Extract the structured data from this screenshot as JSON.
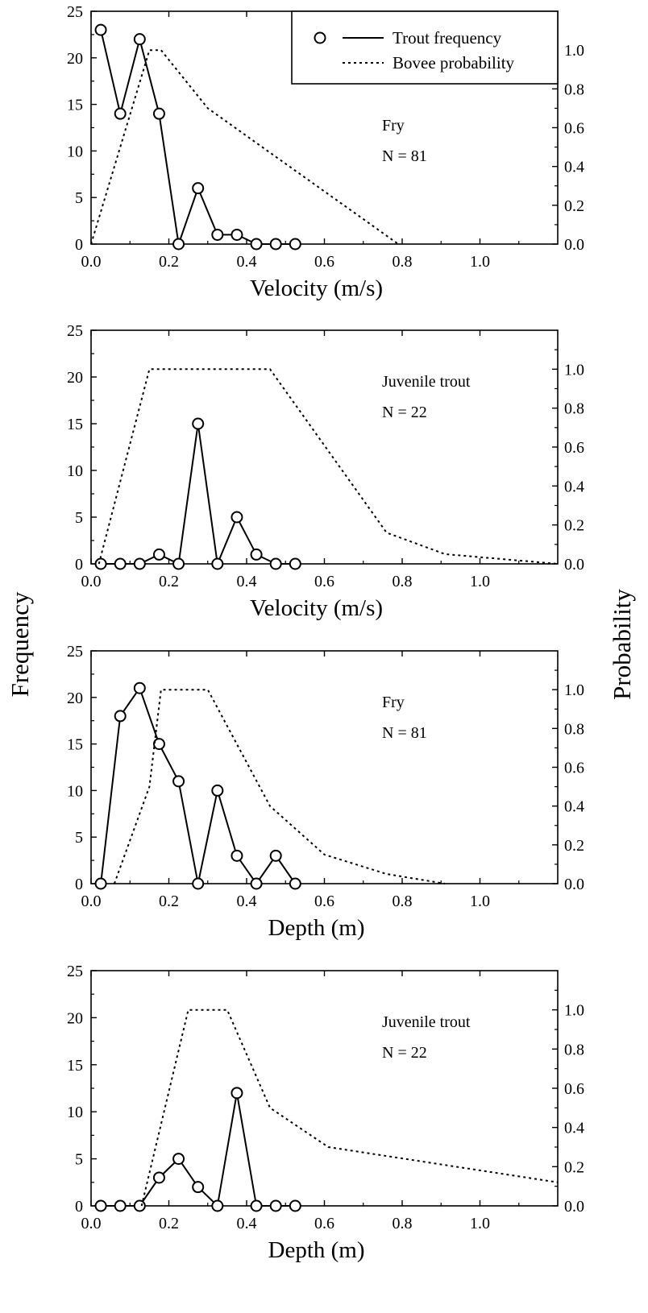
{
  "figure": {
    "left_axis_title": "Frequency",
    "right_axis_title": "Probability"
  },
  "legend": {
    "items": [
      {
        "label": "Trout frequency",
        "style": "solid-circle"
      },
      {
        "label": "Bovee probability",
        "style": "dotted"
      }
    ]
  },
  "colors": {
    "line": "#000000",
    "background": "#ffffff"
  },
  "chart_data": [
    {
      "type": "line",
      "title": "",
      "xlabel": "Velocity (m/s)",
      "ylabel": "Frequency",
      "y2label": "Probability",
      "xlim": [
        0,
        1.2
      ],
      "ylim": [
        0,
        25
      ],
      "y2lim": [
        0,
        1.2
      ],
      "xticks": [
        "0.0",
        "0.2",
        "0.4",
        "0.6",
        "0.8",
        "1.0"
      ],
      "yticks": [
        "0",
        "5",
        "10",
        "15",
        "20",
        "25"
      ],
      "y2ticks": [
        "0.0",
        "0.2",
        "0.4",
        "0.6",
        "0.8",
        "1.0"
      ],
      "annotations": [
        "Fry",
        "N = 81"
      ],
      "legend_position": "top-right",
      "series": [
        {
          "name": "Trout frequency",
          "axis": "left",
          "x": [
            0.025,
            0.075,
            0.125,
            0.175,
            0.225,
            0.275,
            0.325,
            0.375,
            0.425,
            0.475,
            0.525
          ],
          "values": [
            23,
            14,
            22,
            14,
            0,
            6,
            1,
            1,
            0,
            0,
            0
          ]
        },
        {
          "name": "Bovee probability",
          "axis": "right",
          "x": [
            0,
            0.15,
            0.18,
            0.3,
            0.79
          ],
          "values": [
            0,
            1.0,
            1.0,
            0.7,
            0
          ]
        }
      ]
    },
    {
      "type": "line",
      "title": "",
      "xlabel": "Velocity (m/s)",
      "ylabel": "Frequency",
      "y2label": "Probability",
      "xlim": [
        0,
        1.2
      ],
      "ylim": [
        0,
        25
      ],
      "y2lim": [
        0,
        1.2
      ],
      "xticks": [
        "0.0",
        "0.2",
        "0.4",
        "0.6",
        "0.8",
        "1.0"
      ],
      "yticks": [
        "0",
        "5",
        "10",
        "15",
        "20",
        "25"
      ],
      "y2ticks": [
        "0.0",
        "0.2",
        "0.4",
        "0.6",
        "0.8",
        "1.0"
      ],
      "annotations": [
        "Juvenile trout",
        "N = 22"
      ],
      "series": [
        {
          "name": "Trout frequency",
          "axis": "left",
          "x": [
            0.025,
            0.075,
            0.125,
            0.175,
            0.225,
            0.275,
            0.325,
            0.375,
            0.425,
            0.475,
            0.525
          ],
          "values": [
            0,
            0,
            0,
            1,
            0,
            15,
            0,
            5,
            1,
            0,
            0
          ]
        },
        {
          "name": "Bovee probability",
          "axis": "right",
          "x": [
            0.02,
            0.15,
            0.46,
            0.76,
            0.91,
            1.2
          ],
          "values": [
            0,
            1.0,
            1.0,
            0.16,
            0.05,
            0
          ]
        }
      ]
    },
    {
      "type": "line",
      "title": "",
      "xlabel": "Depth (m)",
      "ylabel": "Frequency",
      "y2label": "Probability",
      "xlim": [
        0,
        1.2
      ],
      "ylim": [
        0,
        25
      ],
      "y2lim": [
        0,
        1.2
      ],
      "xticks": [
        "0.0",
        "0.2",
        "0.4",
        "0.6",
        "0.8",
        "1.0"
      ],
      "yticks": [
        "0",
        "5",
        "10",
        "15",
        "20",
        "25"
      ],
      "y2ticks": [
        "0.0",
        "0.2",
        "0.4",
        "0.6",
        "0.8",
        "1.0"
      ],
      "annotations": [
        "Fry",
        "N = 81"
      ],
      "series": [
        {
          "name": "Trout frequency",
          "axis": "left",
          "x": [
            0.025,
            0.075,
            0.125,
            0.175,
            0.225,
            0.275,
            0.325,
            0.375,
            0.425,
            0.475,
            0.525
          ],
          "values": [
            0,
            18,
            21,
            15,
            11,
            0,
            10,
            3,
            0,
            3,
            0
          ]
        },
        {
          "name": "Bovee probability",
          "axis": "right",
          "x": [
            0.06,
            0.15,
            0.18,
            0.3,
            0.46,
            0.6,
            0.76,
            0.91
          ],
          "values": [
            0,
            0.5,
            1.0,
            1.0,
            0.4,
            0.15,
            0.05,
            0
          ]
        }
      ]
    },
    {
      "type": "line",
      "title": "",
      "xlabel": "Depth (m)",
      "ylabel": "Frequency",
      "y2label": "Probability",
      "xlim": [
        0,
        1.2
      ],
      "ylim": [
        0,
        25
      ],
      "y2lim": [
        0,
        1.2
      ],
      "xticks": [
        "0.0",
        "0.2",
        "0.4",
        "0.6",
        "0.8",
        "1.0"
      ],
      "yticks": [
        "0",
        "5",
        "10",
        "15",
        "20",
        "25"
      ],
      "y2ticks": [
        "0.0",
        "0.2",
        "0.4",
        "0.6",
        "0.8",
        "1.0"
      ],
      "annotations": [
        "Juvenile trout",
        "N = 22"
      ],
      "series": [
        {
          "name": "Trout frequency",
          "axis": "left",
          "x": [
            0.025,
            0.075,
            0.125,
            0.175,
            0.225,
            0.275,
            0.325,
            0.375,
            0.425,
            0.475,
            0.525
          ],
          "values": [
            0,
            0,
            0,
            3,
            5,
            2,
            0,
            12,
            0,
            0,
            0
          ]
        },
        {
          "name": "Bovee probability",
          "axis": "right",
          "x": [
            0.13,
            0.25,
            0.35,
            0.46,
            0.61,
            1.2
          ],
          "values": [
            0,
            1.0,
            1.0,
            0.5,
            0.3,
            0.12
          ]
        }
      ]
    }
  ]
}
